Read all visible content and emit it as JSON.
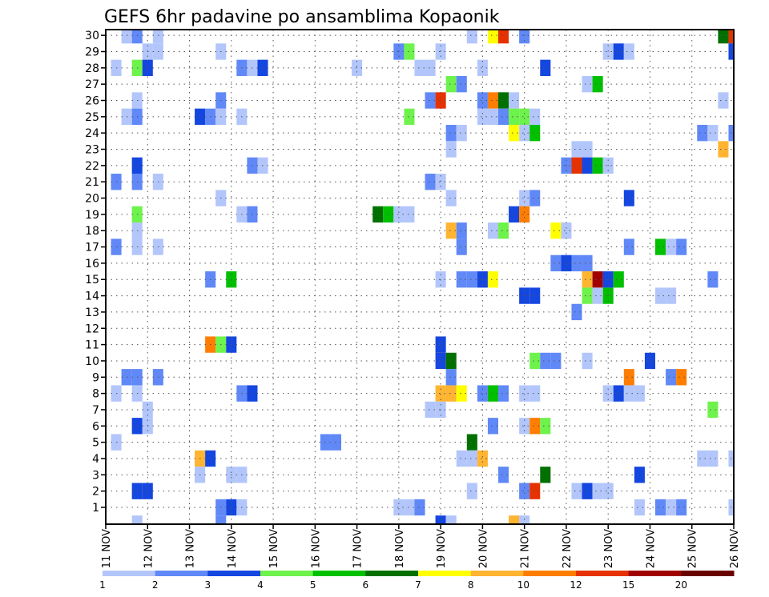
{
  "chart_data": {
    "type": "heatmap",
    "title": "GEFS 6hr padavine po ansamblima Kopaonik",
    "xlabel": "",
    "ylabel": "",
    "x_step_hours": 6,
    "x_tick_labels": [
      "11 NOV",
      "12 NOV",
      "13 NOV",
      "14 NOV",
      "15 NOV",
      "16 NOV",
      "17 NOV",
      "18 NOV",
      "19 NOV",
      "20 NOV",
      "21 NOV",
      "22 NOV",
      "23 NOV",
      "24 NOV",
      "25 NOV",
      "26 NOV"
    ],
    "y_tick_labels": [
      "1",
      "2",
      "3",
      "4",
      "5",
      "6",
      "7",
      "8",
      "9",
      "10",
      "11",
      "12",
      "13",
      "14",
      "15",
      "16",
      "17",
      "18",
      "19",
      "20",
      "21",
      "22",
      "23",
      "24",
      "25",
      "26",
      "27",
      "28",
      "29",
      "30"
    ],
    "xlim_steps": [
      0,
      60
    ],
    "ylim_members": [
      0,
      30
    ],
    "grid": true,
    "legend": {
      "placement": "bottom",
      "labels": [
        "1",
        "2",
        "3",
        "4",
        "5",
        "6",
        "7",
        "8",
        "10",
        "12",
        "15",
        "20"
      ],
      "colors": [
        "#b3c6fb",
        "#6088f7",
        "#1446e0",
        "#6ef24c",
        "#00c000",
        "#007000",
        "#ffff00",
        "#ffb432",
        "#ff7d00",
        "#e63200",
        "#a00000",
        "#6a0000"
      ]
    },
    "cells_format": "[time_step(6h from 11 NOV), member, color_class_index(1-12)]",
    "cells": [
      [
        2,
        30,
        1
      ],
      [
        3,
        30,
        2
      ],
      [
        5,
        30,
        1
      ],
      [
        35,
        30,
        1
      ],
      [
        37,
        30,
        7
      ],
      [
        38,
        30,
        10
      ],
      [
        40,
        30,
        2
      ],
      [
        59,
        30,
        6
      ],
      [
        60,
        30,
        10
      ],
      [
        4,
        29,
        1
      ],
      [
        5,
        29,
        1
      ],
      [
        11,
        29,
        1
      ],
      [
        28,
        29,
        2
      ],
      [
        29,
        29,
        4
      ],
      [
        32,
        29,
        1
      ],
      [
        48,
        29,
        1
      ],
      [
        49,
        29,
        3
      ],
      [
        50,
        29,
        1
      ],
      [
        60,
        29,
        3
      ],
      [
        1,
        28,
        1
      ],
      [
        3,
        28,
        4
      ],
      [
        4,
        28,
        3
      ],
      [
        13,
        28,
        2
      ],
      [
        14,
        28,
        1
      ],
      [
        15,
        28,
        3
      ],
      [
        24,
        28,
        1
      ],
      [
        30,
        28,
        1
      ],
      [
        31,
        28,
        1
      ],
      [
        36,
        28,
        1
      ],
      [
        42,
        28,
        3
      ],
      [
        33,
        27,
        4
      ],
      [
        34,
        27,
        2
      ],
      [
        46,
        27,
        1
      ],
      [
        47,
        27,
        5
      ],
      [
        3,
        26,
        1
      ],
      [
        11,
        26,
        2
      ],
      [
        31,
        26,
        2
      ],
      [
        32,
        26,
        10
      ],
      [
        36,
        26,
        2
      ],
      [
        37,
        26,
        9
      ],
      [
        38,
        26,
        6
      ],
      [
        39,
        26,
        1
      ],
      [
        59,
        26,
        1
      ],
      [
        2,
        25,
        1
      ],
      [
        3,
        25,
        2
      ],
      [
        9,
        25,
        3
      ],
      [
        10,
        25,
        2
      ],
      [
        11,
        25,
        1
      ],
      [
        13,
        25,
        1
      ],
      [
        29,
        25,
        4
      ],
      [
        36,
        25,
        1
      ],
      [
        37,
        25,
        1
      ],
      [
        38,
        25,
        2
      ],
      [
        39,
        25,
        4
      ],
      [
        40,
        25,
        4
      ],
      [
        41,
        25,
        1
      ],
      [
        33,
        24,
        2
      ],
      [
        34,
        24,
        1
      ],
      [
        39,
        24,
        7
      ],
      [
        40,
        24,
        1
      ],
      [
        41,
        24,
        5
      ],
      [
        57,
        24,
        2
      ],
      [
        58,
        24,
        1
      ],
      [
        60,
        24,
        2
      ],
      [
        33,
        23,
        1
      ],
      [
        45,
        23,
        1
      ],
      [
        46,
        23,
        1
      ],
      [
        59,
        23,
        8
      ],
      [
        3,
        22,
        3
      ],
      [
        14,
        22,
        2
      ],
      [
        15,
        22,
        1
      ],
      [
        44,
        22,
        2
      ],
      [
        45,
        22,
        10
      ],
      [
        46,
        22,
        3
      ],
      [
        47,
        22,
        5
      ],
      [
        48,
        22,
        1
      ],
      [
        1,
        21,
        2
      ],
      [
        3,
        21,
        2
      ],
      [
        5,
        21,
        1
      ],
      [
        31,
        21,
        2
      ],
      [
        32,
        21,
        1
      ],
      [
        11,
        20,
        1
      ],
      [
        33,
        20,
        1
      ],
      [
        40,
        20,
        1
      ],
      [
        41,
        20,
        2
      ],
      [
        50,
        20,
        3
      ],
      [
        3,
        19,
        4
      ],
      [
        13,
        19,
        1
      ],
      [
        14,
        19,
        2
      ],
      [
        26,
        19,
        6
      ],
      [
        27,
        19,
        5
      ],
      [
        28,
        19,
        1
      ],
      [
        29,
        19,
        1
      ],
      [
        39,
        19,
        3
      ],
      [
        40,
        19,
        9
      ],
      [
        3,
        18,
        1
      ],
      [
        33,
        18,
        8
      ],
      [
        34,
        18,
        2
      ],
      [
        37,
        18,
        1
      ],
      [
        38,
        18,
        4
      ],
      [
        43,
        18,
        7
      ],
      [
        44,
        18,
        1
      ],
      [
        1,
        17,
        2
      ],
      [
        3,
        17,
        1
      ],
      [
        5,
        17,
        1
      ],
      [
        34,
        17,
        2
      ],
      [
        50,
        17,
        2
      ],
      [
        53,
        17,
        5
      ],
      [
        54,
        17,
        1
      ],
      [
        55,
        17,
        2
      ],
      [
        43,
        16,
        2
      ],
      [
        44,
        16,
        3
      ],
      [
        45,
        16,
        2
      ],
      [
        46,
        16,
        2
      ],
      [
        10,
        15,
        2
      ],
      [
        12,
        15,
        5
      ],
      [
        32,
        15,
        1
      ],
      [
        34,
        15,
        2
      ],
      [
        35,
        15,
        2
      ],
      [
        36,
        15,
        3
      ],
      [
        37,
        15,
        7
      ],
      [
        46,
        15,
        8
      ],
      [
        47,
        15,
        11
      ],
      [
        48,
        15,
        3
      ],
      [
        49,
        15,
        5
      ],
      [
        58,
        15,
        2
      ],
      [
        40,
        14,
        3
      ],
      [
        41,
        14,
        3
      ],
      [
        46,
        14,
        4
      ],
      [
        47,
        14,
        1
      ],
      [
        48,
        14,
        5
      ],
      [
        53,
        14,
        1
      ],
      [
        54,
        14,
        1
      ],
      [
        45,
        13,
        2
      ],
      [
        10,
        11,
        9
      ],
      [
        11,
        11,
        4
      ],
      [
        12,
        11,
        3
      ],
      [
        32,
        11,
        3
      ],
      [
        32,
        10,
        3
      ],
      [
        33,
        10,
        6
      ],
      [
        41,
        10,
        4
      ],
      [
        42,
        10,
        2
      ],
      [
        43,
        10,
        2
      ],
      [
        46,
        10,
        1
      ],
      [
        52,
        10,
        3
      ],
      [
        2,
        9,
        2
      ],
      [
        3,
        9,
        2
      ],
      [
        5,
        9,
        2
      ],
      [
        33,
        9,
        2
      ],
      [
        50,
        9,
        9
      ],
      [
        54,
        9,
        2
      ],
      [
        55,
        9,
        9
      ],
      [
        1,
        8,
        1
      ],
      [
        3,
        8,
        1
      ],
      [
        13,
        8,
        2
      ],
      [
        14,
        8,
        3
      ],
      [
        32,
        8,
        8
      ],
      [
        33,
        8,
        8
      ],
      [
        34,
        8,
        7
      ],
      [
        36,
        8,
        2
      ],
      [
        37,
        8,
        5
      ],
      [
        38,
        8,
        2
      ],
      [
        40,
        8,
        1
      ],
      [
        41,
        8,
        1
      ],
      [
        48,
        8,
        1
      ],
      [
        49,
        8,
        3
      ],
      [
        50,
        8,
        1
      ],
      [
        51,
        8,
        1
      ],
      [
        4,
        7,
        1
      ],
      [
        31,
        7,
        1
      ],
      [
        32,
        7,
        1
      ],
      [
        58,
        7,
        4
      ],
      [
        3,
        6,
        3
      ],
      [
        4,
        6,
        1
      ],
      [
        37,
        6,
        2
      ],
      [
        40,
        6,
        1
      ],
      [
        41,
        6,
        9
      ],
      [
        42,
        6,
        4
      ],
      [
        1,
        5,
        1
      ],
      [
        21,
        5,
        2
      ],
      [
        22,
        5,
        2
      ],
      [
        35,
        5,
        6
      ],
      [
        9,
        4,
        8
      ],
      [
        10,
        4,
        3
      ],
      [
        34,
        4,
        1
      ],
      [
        35,
        4,
        1
      ],
      [
        36,
        4,
        8
      ],
      [
        57,
        4,
        1
      ],
      [
        58,
        4,
        1
      ],
      [
        60,
        4,
        1
      ],
      [
        9,
        3,
        1
      ],
      [
        12,
        3,
        1
      ],
      [
        13,
        3,
        1
      ],
      [
        38,
        3,
        2
      ],
      [
        42,
        3,
        6
      ],
      [
        51,
        3,
        3
      ],
      [
        3,
        2,
        3
      ],
      [
        4,
        2,
        3
      ],
      [
        35,
        2,
        1
      ],
      [
        40,
        2,
        2
      ],
      [
        41,
        2,
        10
      ],
      [
        45,
        2,
        1
      ],
      [
        46,
        2,
        3
      ],
      [
        47,
        2,
        1
      ],
      [
        48,
        2,
        1
      ],
      [
        11,
        1,
        2
      ],
      [
        12,
        1,
        3
      ],
      [
        13,
        1,
        1
      ],
      [
        28,
        1,
        1
      ],
      [
        29,
        1,
        1
      ],
      [
        30,
        1,
        2
      ],
      [
        51,
        1,
        1
      ],
      [
        53,
        1,
        2
      ],
      [
        54,
        1,
        1
      ],
      [
        55,
        1,
        2
      ],
      [
        60,
        1,
        1
      ],
      [
        3,
        0,
        1
      ],
      [
        11,
        0,
        2
      ],
      [
        32,
        0,
        3
      ],
      [
        33,
        0,
        1
      ],
      [
        39,
        0,
        8
      ],
      [
        40,
        0,
        1
      ]
    ]
  }
}
